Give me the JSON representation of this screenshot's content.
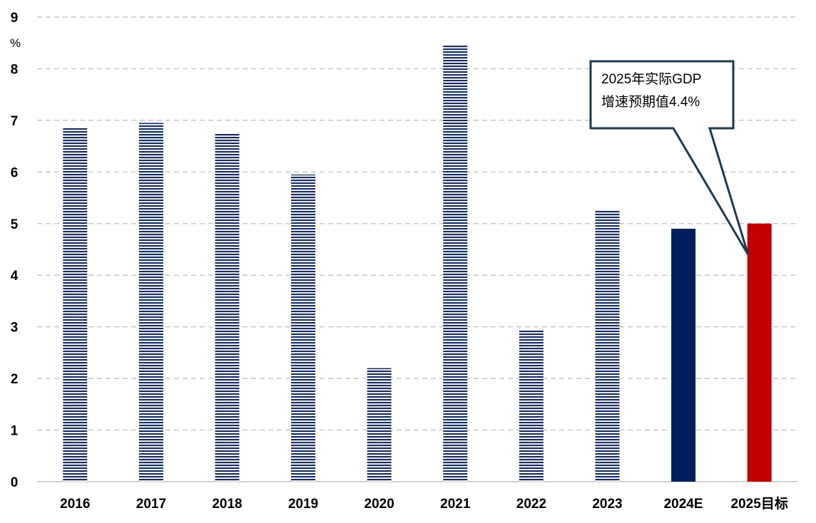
{
  "chart_data": {
    "type": "bar",
    "categories": [
      "2016",
      "2017",
      "2018",
      "2019",
      "2020",
      "2021",
      "2022",
      "2023",
      "2024E",
      "2025目标"
    ],
    "values": [
      6.85,
      6.95,
      6.75,
      5.95,
      2.2,
      8.45,
      2.95,
      5.25,
      4.9,
      5.0
    ],
    "ylabel": "%",
    "ylim": [
      0,
      9
    ],
    "yticks": [
      0,
      1,
      2,
      3,
      4,
      5,
      6,
      7,
      8,
      9
    ],
    "grid": true,
    "legend": "none",
    "annotation": {
      "lines": [
        "2025年实际GDP",
        "增速预期值4.4%"
      ],
      "points_to_value": 4.4,
      "points_to_category": "2025目标"
    },
    "bar_styles": [
      "striped",
      "striped",
      "striped",
      "striped",
      "striped",
      "striped",
      "striped",
      "striped",
      "solid",
      "solid"
    ],
    "colors": {
      "historical": "#1a2e5c",
      "estimate": "#001f5b",
      "target": "#c00000",
      "grid": "#c8c8c8",
      "callout_border": "#1f3a4d"
    }
  }
}
